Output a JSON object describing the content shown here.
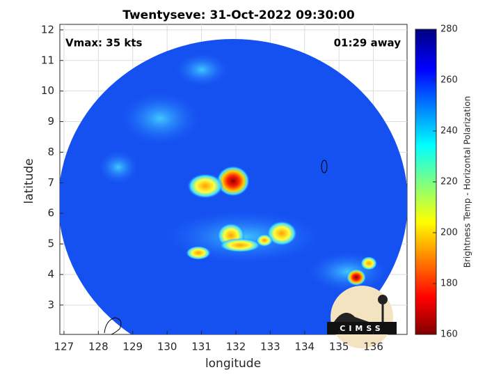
{
  "chart_data": {
    "type": "heatmap",
    "title": "Twentyseve: 31-Oct-2022 09:30:00",
    "annotations": [
      "Vmax: 35 kts",
      "01:29 away"
    ],
    "x_label": "longitude",
    "y_label": "latitude",
    "xlim": [
      126.88,
      136.98
    ],
    "xticks": [
      127,
      128,
      129,
      130,
      131,
      132,
      133,
      134,
      135,
      136
    ],
    "ylim": [
      2.04,
      12.18
    ],
    "yticks": [
      3,
      4,
      5,
      6,
      7,
      8,
      9,
      10,
      11,
      12
    ],
    "grid": true,
    "colorbar": {
      "label": "Brightness Temp - Horizontal Polarization",
      "lim": [
        160,
        280
      ],
      "ticks": [
        160,
        180,
        200,
        220,
        240,
        260,
        280
      ]
    },
    "logo": "CIMSS"
  }
}
